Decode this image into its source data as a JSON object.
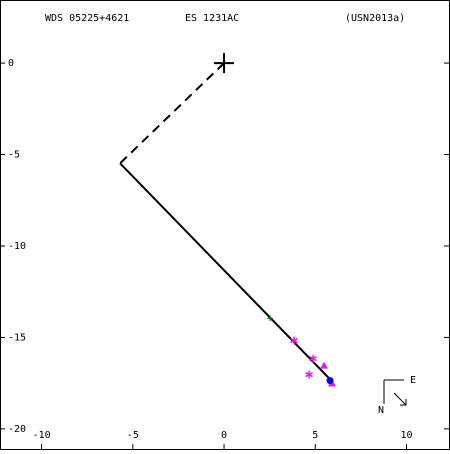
{
  "chart_data": {
    "type": "scatter",
    "labels": [
      "WDS 05225+4621",
      "ES 1231AC",
      "(USN2013a)"
    ],
    "compass": [
      "E",
      "N"
    ],
    "xlim": [
      -12.28,
      12.33
    ],
    "ylim": [
      -21.1,
      3.45
    ],
    "xticks": [
      -10,
      -5,
      0,
      5,
      10
    ],
    "yticks": [
      0,
      -5,
      -10,
      -15,
      -20
    ],
    "series": [
      {
        "marker": "dashed",
        "color": "#000000",
        "x": [
          0,
          -5.7
        ],
        "values": [
          0,
          -5.48
        ]
      },
      {
        "marker": "line",
        "color": "#000000",
        "x": [
          -5.7,
          5.92
        ],
        "values": [
          -5.48,
          -17.4
        ]
      },
      {
        "marker": "big-plus",
        "color": "#000000",
        "x": [
          0
        ],
        "values": [
          0
        ]
      },
      {
        "marker": "plus",
        "color": "#008000",
        "x": [
          2.52
        ],
        "values": [
          -13.96
        ]
      },
      {
        "marker": "asterisk",
        "color": "#e020e0",
        "x": [
          3.84,
          4.88,
          4.66
        ],
        "values": [
          -15.17,
          -16.16,
          -17.03
        ]
      },
      {
        "marker": "triangle",
        "color": "#e020e0",
        "x": [
          5.48,
          5.92
        ],
        "values": [
          -16.54,
          -17.52
        ]
      },
      {
        "marker": "dot",
        "color": "#0000ff",
        "x": [
          5.81
        ],
        "values": [
          -17.36
        ]
      }
    ]
  }
}
